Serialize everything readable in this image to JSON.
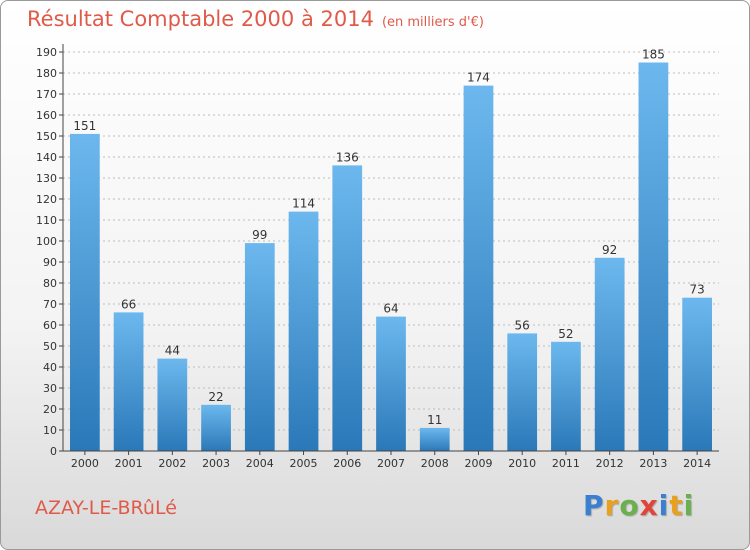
{
  "header": {
    "title": "Résultat Comptable 2000 à 2014",
    "subtitle": "(en milliers d'€)"
  },
  "footer": {
    "place": "AZAY-LE-BRûLé",
    "logo_letters": [
      "P",
      "r",
      "o",
      "x",
      "i",
      "t",
      "i"
    ],
    "logo_colors": [
      "#3a7fd0",
      "#e8a020",
      "#6ab04c",
      "#e0453a",
      "#3a7fd0",
      "#e8a020",
      "#6ab04c"
    ]
  },
  "colors": {
    "accent": "#e05a4a",
    "bar_top": "#6cb8ee",
    "bar_bottom": "#2a78b8",
    "axis": "#444444",
    "grid": "#bdbdbd"
  },
  "chart_data": {
    "type": "bar",
    "title": "Résultat Comptable 2000 à 2014",
    "subtitle": "(en milliers d'€)",
    "xlabel": "",
    "ylabel": "",
    "categories": [
      "2000",
      "2001",
      "2002",
      "2003",
      "2004",
      "2005",
      "2006",
      "2007",
      "2008",
      "2009",
      "2010",
      "2011",
      "2012",
      "2013",
      "2014"
    ],
    "values": [
      151,
      66,
      44,
      22,
      99,
      114,
      136,
      64,
      11,
      174,
      56,
      52,
      92,
      185,
      73
    ],
    "ylim": [
      0,
      190
    ],
    "ytick_step": 10,
    "grid": true,
    "data_labels": true
  }
}
